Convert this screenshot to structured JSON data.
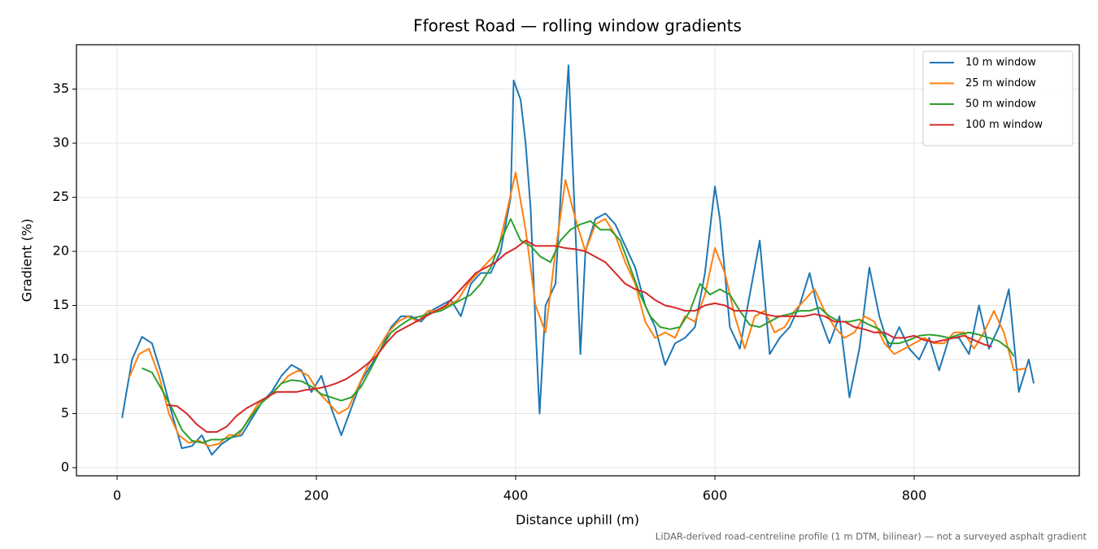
{
  "chart_data": {
    "type": "line",
    "title": "Fforest Road — rolling window gradients",
    "x_label": "Distance uphill (m)",
    "y_label": "Gradient (%)",
    "footnote": "LiDAR-derived road-centreline profile (1 m DTM, bilinear) — not a surveyed asphalt gradient",
    "xlim": [
      -40.8,
      965.7
    ],
    "ylim": [
      -0.75,
      39.1
    ],
    "xticks": [
      0,
      200,
      400,
      600,
      800
    ],
    "yticks": [
      0,
      5,
      10,
      15,
      20,
      25,
      30,
      35
    ],
    "grid": true,
    "legend": "upper right",
    "series": [
      {
        "name": "10 m window",
        "color": "#1f77b4",
        "x": [
          5,
          15,
          25,
          35,
          45,
          55,
          65,
          75,
          85,
          95,
          105,
          115,
          125,
          135,
          145,
          155,
          165,
          175,
          185,
          195,
          205,
          215,
          225,
          235,
          245,
          255,
          265,
          275,
          285,
          295,
          305,
          315,
          325,
          335,
          345,
          355,
          365,
          375,
          385,
          395,
          398,
          405,
          410,
          415,
          420,
          424,
          430,
          440,
          447,
          453,
          460,
          465,
          470,
          480,
          490,
          500,
          510,
          520,
          530,
          540,
          550,
          560,
          570,
          580,
          590,
          600,
          605,
          615,
          625,
          635,
          645,
          655,
          665,
          675,
          685,
          695,
          705,
          715,
          725,
          735,
          745,
          755,
          765,
          775,
          785,
          795,
          805,
          815,
          825,
          835,
          845,
          855,
          865,
          875,
          885,
          895,
          905,
          915,
          920
        ],
        "values": [
          4.6,
          10,
          12.1,
          11.5,
          8.5,
          5,
          1.8,
          2,
          3,
          1.2,
          2.2,
          2.8,
          3,
          4.5,
          6,
          7,
          8.5,
          9.5,
          9,
          7,
          8.5,
          5.5,
          3,
          5.5,
          8,
          9.5,
          11,
          13,
          14,
          14,
          13.5,
          14.5,
          15,
          15.5,
          14,
          17,
          18,
          18,
          20,
          25,
          35.8,
          34,
          30,
          24,
          13,
          5,
          15,
          17,
          28,
          37.2,
          22,
          10.5,
          20,
          23,
          23.5,
          22.5,
          20.5,
          18.5,
          15,
          13,
          9.5,
          11.5,
          12,
          13,
          18,
          26,
          23,
          13,
          11,
          16,
          21,
          10.5,
          12,
          13,
          15,
          18,
          14,
          11.5,
          14,
          6.5,
          11,
          18.5,
          14,
          11,
          13,
          11,
          10,
          12,
          9,
          12,
          12,
          10.5,
          15,
          11,
          13,
          16.5,
          7,
          10,
          7.8
        ]
      },
      {
        "name": "25 m window",
        "color": "#ff7f0e",
        "x": [
          12,
          22,
          32,
          42,
          52,
          62,
          72,
          82,
          92,
          102,
          112,
          122,
          132,
          142,
          152,
          162,
          172,
          182,
          192,
          202,
          212,
          222,
          232,
          242,
          252,
          262,
          272,
          282,
          292,
          302,
          312,
          322,
          332,
          342,
          352,
          362,
          372,
          382,
          392,
          400,
          410,
          420,
          430,
          440,
          450,
          460,
          470,
          480,
          490,
          500,
          510,
          520,
          530,
          540,
          550,
          560,
          570,
          580,
          590,
          600,
          610,
          620,
          630,
          640,
          650,
          660,
          670,
          680,
          690,
          700,
          710,
          720,
          730,
          740,
          750,
          760,
          770,
          780,
          790,
          800,
          810,
          820,
          830,
          840,
          850,
          860,
          870,
          880,
          890,
          900,
          913
        ],
        "values": [
          8.3,
          10.5,
          11,
          8.5,
          5,
          3,
          2.3,
          2.5,
          2,
          2.2,
          3,
          3,
          4.5,
          6,
          6.5,
          7.5,
          8.5,
          9,
          8.5,
          7,
          6,
          5,
          5.5,
          7.5,
          9.5,
          11,
          12.5,
          13.5,
          14,
          13.5,
          14.5,
          14.5,
          15,
          15.5,
          17,
          18,
          19,
          20,
          24,
          27.3,
          22,
          15,
          12.5,
          20,
          26.6,
          23,
          20,
          22.5,
          23,
          21.5,
          19,
          17,
          13.5,
          12,
          12.5,
          12,
          14,
          13.5,
          16,
          20.3,
          18,
          14,
          11,
          14,
          14.5,
          12.5,
          13,
          14.5,
          15.5,
          16.5,
          14.5,
          13,
          12,
          12.5,
          14,
          13.5,
          11.5,
          10.5,
          11,
          11.5,
          12,
          11.5,
          11.5,
          12.5,
          12.5,
          11,
          12.5,
          14.5,
          12.5,
          9,
          9.2
        ]
      },
      {
        "name": "50 m window",
        "color": "#2ca02c",
        "x": [
          25,
          35,
          45,
          55,
          65,
          75,
          85,
          95,
          105,
          115,
          125,
          135,
          145,
          155,
          165,
          175,
          185,
          195,
          205,
          215,
          225,
          235,
          245,
          255,
          265,
          275,
          285,
          295,
          305,
          315,
          325,
          335,
          345,
          355,
          365,
          375,
          385,
          395,
          405,
          415,
          425,
          435,
          445,
          455,
          465,
          475,
          485,
          495,
          505,
          515,
          525,
          535,
          545,
          555,
          565,
          575,
          585,
          595,
          605,
          615,
          625,
          635,
          645,
          655,
          665,
          675,
          685,
          695,
          705,
          715,
          725,
          735,
          745,
          755,
          765,
          775,
          785,
          795,
          805,
          815,
          825,
          835,
          845,
          855,
          865,
          875,
          885,
          895,
          900
        ],
        "values": [
          9.2,
          8.8,
          7.2,
          5.5,
          3.5,
          2.5,
          2.3,
          2.6,
          2.6,
          2.8,
          3.5,
          4.8,
          6,
          6.8,
          7.8,
          8.1,
          8,
          7.5,
          6.8,
          6.5,
          6.2,
          6.5,
          7.5,
          9.2,
          11,
          12.5,
          13.2,
          13.8,
          14,
          14.3,
          14.5,
          15,
          15.5,
          16,
          17,
          18.5,
          21,
          23,
          21,
          20.5,
          19.5,
          19,
          21,
          22,
          22.5,
          22.8,
          22,
          22,
          21,
          18.5,
          16,
          14,
          13,
          12.8,
          13,
          14.5,
          17,
          16,
          16.5,
          16,
          14.5,
          13.2,
          13,
          13.5,
          14,
          14.2,
          14.5,
          14.5,
          14.8,
          14,
          13.5,
          13.5,
          13.7,
          13.2,
          12.8,
          11.5,
          11.5,
          11.8,
          12.2,
          12.3,
          12.2,
          12,
          12.3,
          12.5,
          12.3,
          12,
          11.7,
          11,
          10.3
        ]
      },
      {
        "name": "100 m window",
        "color": "#d62728",
        "x": [
          50,
          60,
          70,
          80,
          90,
          100,
          110,
          120,
          130,
          140,
          150,
          160,
          170,
          180,
          190,
          200,
          210,
          220,
          230,
          240,
          250,
          260,
          270,
          280,
          290,
          300,
          310,
          320,
          330,
          340,
          350,
          360,
          370,
          380,
          390,
          400,
          410,
          420,
          430,
          440,
          450,
          460,
          470,
          480,
          490,
          500,
          510,
          520,
          530,
          540,
          550,
          560,
          570,
          580,
          590,
          600,
          610,
          620,
          630,
          640,
          650,
          660,
          670,
          680,
          690,
          700,
          710,
          720,
          730,
          740,
          750,
          760,
          770,
          780,
          790,
          800,
          810,
          820,
          830,
          840,
          850,
          860,
          870,
          878
        ],
        "values": [
          5.8,
          5.7,
          5,
          4,
          3.3,
          3.3,
          3.8,
          4.8,
          5.5,
          6,
          6.5,
          7,
          7,
          7,
          7.2,
          7.3,
          7.5,
          7.8,
          8.2,
          8.8,
          9.5,
          10.3,
          11.5,
          12.5,
          13,
          13.5,
          14,
          14.5,
          15,
          16,
          17,
          18,
          18.5,
          19,
          19.8,
          20.3,
          21,
          20.5,
          20.5,
          20.5,
          20.3,
          20.2,
          20,
          19.5,
          19,
          18,
          17,
          16.5,
          16.2,
          15.5,
          15,
          14.8,
          14.5,
          14.5,
          15,
          15.2,
          15,
          14.5,
          14.5,
          14.5,
          14.2,
          14,
          14,
          14,
          14,
          14.2,
          14,
          13.5,
          13.5,
          13,
          12.8,
          12.5,
          12.5,
          12,
          12,
          12.2,
          11.8,
          11.6,
          11.8,
          12,
          12.2,
          11.8,
          11.4,
          11.2
        ]
      }
    ]
  }
}
